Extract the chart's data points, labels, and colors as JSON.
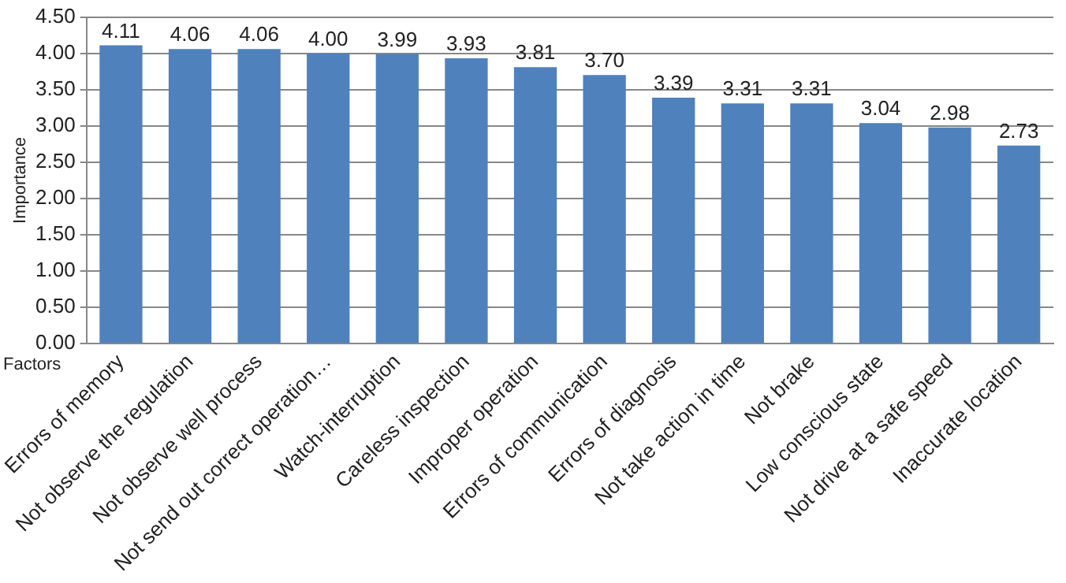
{
  "chart_data": {
    "type": "bar",
    "xlabel": "Factors",
    "ylabel": "Importance",
    "categories": [
      "Errors of memory",
      "Not observe the regulation",
      "Not observe well process",
      "Not send out correct operation…",
      "Watch-interruption",
      "Careless inspection",
      "Improper operation",
      "Errors of communication",
      "Errors of diagnosis",
      "Not take action in time",
      "Not brake",
      "Low conscious state",
      "Not drive at a safe speed",
      "Inaccurate location"
    ],
    "values": [
      4.11,
      4.06,
      4.06,
      4.0,
      3.99,
      3.93,
      3.81,
      3.7,
      3.39,
      3.31,
      3.31,
      3.04,
      2.98,
      2.73
    ],
    "value_labels": [
      "4.11",
      "4.06",
      "4.06",
      "4.00",
      "3.99",
      "3.93",
      "3.81",
      "3.70",
      "3.39",
      "3.31",
      "3.31",
      "3.04",
      "2.98",
      "2.73"
    ],
    "color": "#4f81bd",
    "ylim": [
      0,
      4.5
    ],
    "yticks": [
      {
        "value": 0,
        "label": "0.00"
      },
      {
        "value": 0.5,
        "label": "0.50"
      },
      {
        "value": 1,
        "label": "1.00"
      },
      {
        "value": 1.5,
        "label": "1.50"
      },
      {
        "value": 2,
        "label": "2.00"
      },
      {
        "value": 2.5,
        "label": "2.50"
      },
      {
        "value": 3,
        "label": "3.00"
      },
      {
        "value": 3.5,
        "label": "3.50"
      },
      {
        "value": 4,
        "label": "4.00"
      },
      {
        "value": 4.5,
        "label": "4.50"
      }
    ],
    "grid": "y"
  }
}
